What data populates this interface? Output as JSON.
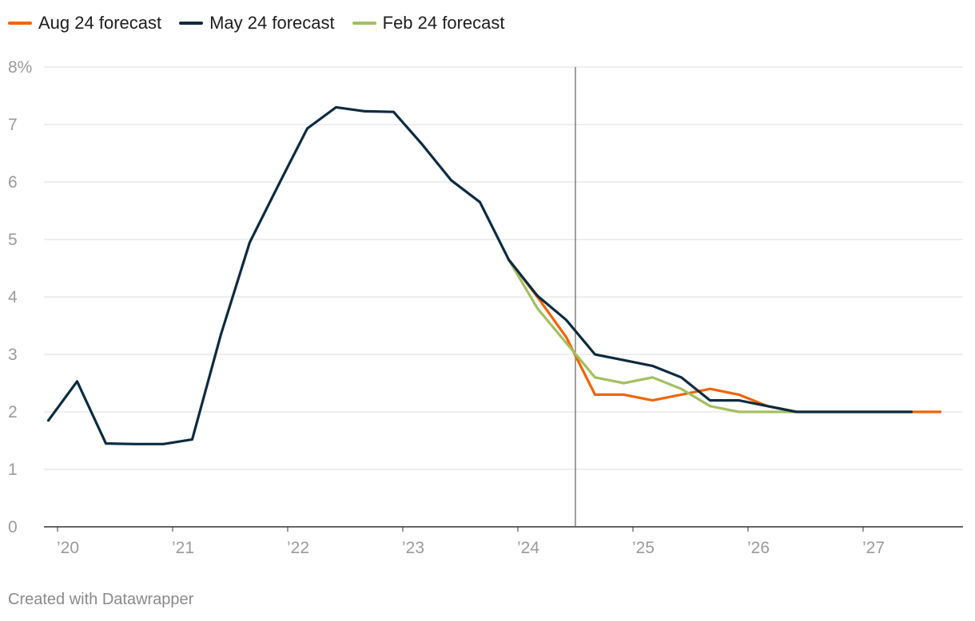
{
  "chart_data": {
    "type": "line",
    "title": "",
    "xlabel": "",
    "ylabel": "",
    "ylim": [
      0,
      8
    ],
    "xlim": [
      2020,
      2027.8
    ],
    "y_ticks": [
      0,
      1,
      2,
      3,
      4,
      5,
      6,
      7,
      8
    ],
    "y_tick_labels": [
      "0",
      "1",
      "2",
      "3",
      "4",
      "5",
      "6",
      "7",
      "8%"
    ],
    "x_ticks": [
      2020,
      2021,
      2022,
      2023,
      2024,
      2025,
      2026,
      2027
    ],
    "x_tick_labels": [
      "’20",
      "’21",
      "’22",
      "’23",
      "’24",
      "’25",
      "’26",
      "’27"
    ],
    "grid": true,
    "legend": "top-left",
    "vertical_marker_x": 2024.5,
    "series": [
      {
        "name": "Aug 24 forecast",
        "color": "#f06400",
        "x": [
          2023.92,
          2024.17,
          2024.42,
          2024.67,
          2024.92,
          2025.17,
          2025.42,
          2025.67,
          2025.92,
          2026.17,
          2026.42,
          2026.67,
          2026.92,
          2027.17,
          2027.42,
          2027.67
        ],
        "y": [
          4.65,
          4.0,
          3.3,
          2.3,
          2.3,
          2.2,
          2.3,
          2.4,
          2.3,
          2.1,
          2.0,
          2.0,
          2.0,
          2.0,
          2.0,
          2.0
        ]
      },
      {
        "name": "Feb 24 forecast",
        "color": "#a3bf60",
        "x": [
          2023.92,
          2024.17,
          2024.42,
          2024.67,
          2024.92,
          2025.17,
          2025.42,
          2025.67,
          2025.92,
          2026.17,
          2026.42
        ],
        "y": [
          4.65,
          3.8,
          3.2,
          2.6,
          2.5,
          2.6,
          2.4,
          2.1,
          2.0,
          2.0,
          2.0
        ]
      },
      {
        "name": "May 24 forecast",
        "color": "#0d2b40",
        "x": [
          2019.92,
          2020.17,
          2020.42,
          2020.67,
          2020.92,
          2021.17,
          2021.42,
          2021.67,
          2021.92,
          2022.17,
          2022.42,
          2022.67,
          2022.92,
          2023.17,
          2023.42,
          2023.67,
          2023.92,
          2024.17,
          2024.42,
          2024.67,
          2024.92,
          2025.17,
          2025.42,
          2025.67,
          2025.92,
          2026.17,
          2026.42,
          2026.67,
          2026.92,
          2027.17,
          2027.42
        ],
        "y": [
          1.85,
          2.53,
          1.45,
          1.44,
          1.44,
          1.52,
          3.35,
          4.95,
          5.95,
          6.93,
          7.3,
          7.23,
          7.22,
          6.65,
          6.03,
          5.65,
          4.65,
          4.02,
          3.6,
          3.0,
          2.9,
          2.8,
          2.6,
          2.2,
          2.2,
          2.1,
          2.0,
          2.0,
          2.0,
          2.0,
          2.0
        ]
      }
    ]
  },
  "legend_items": [
    {
      "label": "Aug 24 forecast",
      "color": "#f06400"
    },
    {
      "label": "May 24 forecast",
      "color": "#0d2b40"
    },
    {
      "label": "Feb 24 forecast",
      "color": "#a3bf60"
    }
  ],
  "credit": "Created with Datawrapper"
}
